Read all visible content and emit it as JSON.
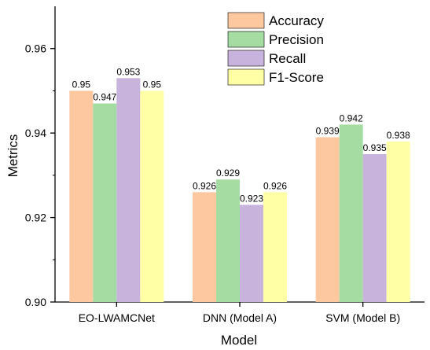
{
  "chart_data": {
    "type": "bar",
    "categories": [
      "EO-LWAMCNet",
      "DNN (Model A)",
      "SVM (Model B)"
    ],
    "series": [
      {
        "name": "Accuracy",
        "values": [
          0.95,
          0.926,
          0.939
        ],
        "labels": [
          "0.95",
          "0.926",
          "0.939"
        ],
        "color": "#FDC7A0"
      },
      {
        "name": "Precision",
        "values": [
          0.947,
          0.929,
          0.942
        ],
        "labels": [
          "0.947",
          "0.929",
          "0.942"
        ],
        "color": "#A4DCA2"
      },
      {
        "name": "Recall",
        "values": [
          0.953,
          0.923,
          0.935
        ],
        "labels": [
          "0.953",
          "0.923",
          "0.935"
        ],
        "color": "#C8B3DC"
      },
      {
        "name": "F1-Score",
        "values": [
          0.95,
          0.926,
          0.938
        ],
        "labels": [
          "0.95",
          "0.926",
          "0.938"
        ],
        "color": "#FFFFA6"
      }
    ],
    "xlabel": "Model",
    "ylabel": "Metrics",
    "ylim": [
      0.9,
      0.97
    ],
    "yticks": [
      0.9,
      0.92,
      0.94,
      0.96
    ],
    "ytick_labels": [
      "0.90",
      "0.92",
      "0.94",
      "0.96"
    ],
    "legend_position": "top-right",
    "grid": false
  }
}
